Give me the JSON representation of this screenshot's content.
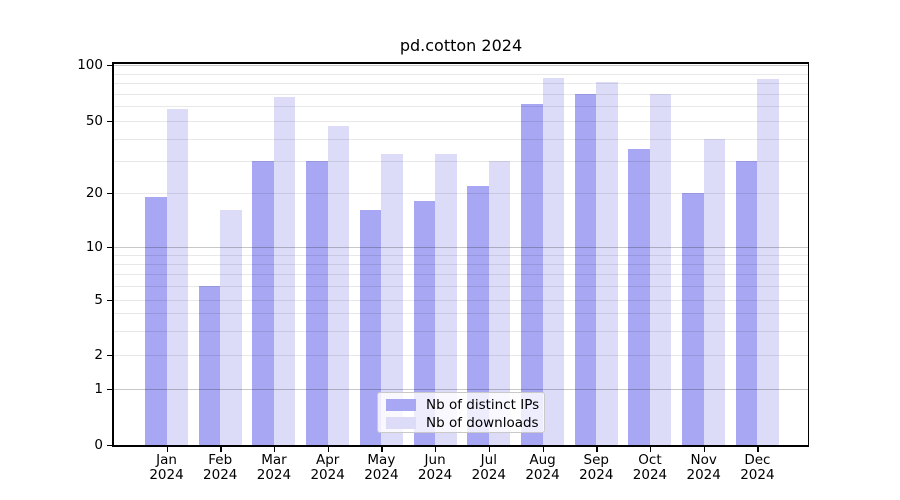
{
  "title": "pd.cotton 2024",
  "chart_data": {
    "type": "bar",
    "title": "pd.cotton 2024",
    "categories": [
      "Jan 2024",
      "Feb 2024",
      "Mar 2024",
      "Apr 2024",
      "May 2024",
      "Jun 2024",
      "Jul 2024",
      "Aug 2024",
      "Sep 2024",
      "Oct 2024",
      "Nov 2024",
      "Dec 2024"
    ],
    "series": [
      {
        "name": "Nb of distinct IPs",
        "color": "#a7a7f3",
        "values": [
          19,
          6,
          30,
          30,
          16,
          18,
          22,
          62,
          70,
          35,
          20,
          30
        ]
      },
      {
        "name": "Nb of downloads",
        "color": "#dcdcf9",
        "values": [
          58,
          16,
          67,
          47,
          33,
          33,
          30,
          85,
          81,
          70,
          40,
          84
        ]
      }
    ],
    "yticks": [
      0,
      1,
      2,
      5,
      10,
      20,
      50,
      100
    ],
    "minor_gridlines": [
      3,
      4,
      6,
      7,
      8,
      9,
      30,
      40,
      60,
      70,
      80,
      90
    ],
    "decade_gridlines": [
      1,
      10,
      100
    ],
    "ylim": [
      0,
      100
    ],
    "scale": "symlog",
    "grid": true,
    "legend_position": "bottom-center",
    "xlabel": "",
    "ylabel": ""
  }
}
